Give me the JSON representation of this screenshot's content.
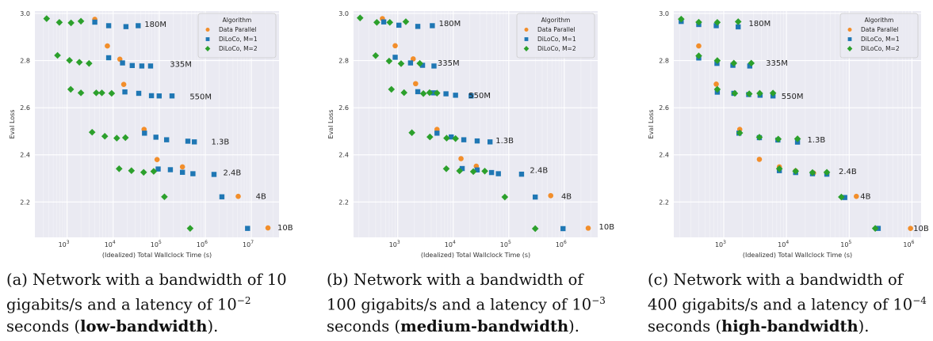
{
  "colors": {
    "background": "#eaeaf2",
    "grid": "#ffffff",
    "data_parallel": "#f28e2b",
    "diloco_m1": "#1f77b4",
    "diloco_m2": "#2ca02c"
  },
  "chart_data": [
    {
      "type": "scatter",
      "panel": "a",
      "title": "",
      "xlabel": "(Idealized) Total Wallclock Time (s)",
      "ylabel": "Eval Loss",
      "xscale": "log",
      "xlim": [
        200,
        40000000
      ],
      "ylim": [
        2.05,
        3.01
      ],
      "xticks": [
        {
          "v": 1000,
          "base": "10",
          "exp": "3"
        },
        {
          "v": 10000,
          "base": "10",
          "exp": "4"
        },
        {
          "v": 100000,
          "base": "10",
          "exp": "5"
        },
        {
          "v": 1000000,
          "base": "10",
          "exp": "6"
        },
        {
          "v": 10000000,
          "base": "10",
          "exp": "7"
        }
      ],
      "yticks": [
        {
          "v": 2.2,
          "label": "2.2"
        },
        {
          "v": 2.4,
          "label": "2.4"
        },
        {
          "v": 2.6,
          "label": "2.6"
        },
        {
          "v": 2.8,
          "label": "2.8"
        },
        {
          "v": 3.0,
          "label": "3.0"
        }
      ],
      "grid": true,
      "legend": {
        "title": "Algorithm",
        "position": "top-right",
        "entries": [
          "Data Parallel",
          "DiLoCo, M=1",
          "DiLoCo, M=2"
        ]
      },
      "annotations": [
        {
          "text": "180M",
          "x": 48000,
          "y": 2.955
        },
        {
          "text": "335M",
          "x": 170000,
          "y": 2.785
        },
        {
          "text": "550M",
          "x": 460000,
          "y": 2.648
        },
        {
          "text": "1.3B",
          "x": 1350000,
          "y": 2.456
        },
        {
          "text": "2.4B",
          "x": 2450000,
          "y": 2.326
        },
        {
          "text": "4B",
          "x": 12500000,
          "y": 2.224
        },
        {
          "text": "10B",
          "x": 37000000,
          "y": 2.092
        }
      ],
      "series": [
        {
          "name": "Data Parallel",
          "marker": "circle",
          "points": [
            [
              4000,
              2.975
            ],
            [
              7500,
              2.862
            ],
            [
              14000,
              2.806
            ],
            [
              17000,
              2.699
            ],
            [
              47000,
              2.508
            ],
            [
              90000,
              2.38
            ],
            [
              320000,
              2.349
            ],
            [
              5200000,
              2.224
            ],
            [
              23000000,
              2.09
            ]
          ]
        },
        {
          "name": "DiLoCo, M=1",
          "marker": "square",
          "points": [
            [
              4000,
              2.963
            ],
            [
              8000,
              2.948
            ],
            [
              19000,
              2.944
            ],
            [
              35000,
              2.948
            ],
            [
              8000,
              2.812
            ],
            [
              16000,
              2.79
            ],
            [
              26000,
              2.779
            ],
            [
              42000,
              2.777
            ],
            [
              65000,
              2.777
            ],
            [
              18000,
              2.667
            ],
            [
              36000,
              2.661
            ],
            [
              68000,
              2.651
            ],
            [
              100000,
              2.65
            ],
            [
              190000,
              2.65
            ],
            [
              48000,
              2.492
            ],
            [
              85000,
              2.475
            ],
            [
              145000,
              2.464
            ],
            [
              420000,
              2.458
            ],
            [
              580000,
              2.455
            ],
            [
              95000,
              2.34
            ],
            [
              175000,
              2.337
            ],
            [
              320000,
              2.326
            ],
            [
              540000,
              2.32
            ],
            [
              1550000,
              2.317
            ],
            [
              2300000,
              2.222
            ],
            [
              8300000,
              2.088
            ]
          ]
        },
        {
          "name": "DiLoCo, M=2",
          "marker": "diamond",
          "points": [
            [
              360,
              2.978
            ],
            [
              680,
              2.962
            ],
            [
              1220,
              2.96
            ],
            [
              2000,
              2.967
            ],
            [
              620,
              2.822
            ],
            [
              1130,
              2.801
            ],
            [
              1850,
              2.793
            ],
            [
              3000,
              2.788
            ],
            [
              1200,
              2.678
            ],
            [
              2000,
              2.663
            ],
            [
              4300,
              2.663
            ],
            [
              5700,
              2.663
            ],
            [
              9300,
              2.661
            ],
            [
              3500,
              2.496
            ],
            [
              6600,
              2.479
            ],
            [
              12000,
              2.471
            ],
            [
              18500,
              2.473
            ],
            [
              13500,
              2.341
            ],
            [
              25000,
              2.333
            ],
            [
              46000,
              2.326
            ],
            [
              76000,
              2.33
            ],
            [
              130000,
              2.222
            ],
            [
              470000,
              2.088
            ]
          ]
        }
      ]
    },
    {
      "type": "scatter",
      "panel": "b",
      "title": "",
      "xlabel": "(Idealized) Total Wallclock Time (s)",
      "ylabel": "Eval Loss",
      "xscale": "log",
      "xlim": [
        160,
        4000000
      ],
      "ylim": [
        2.05,
        3.01
      ],
      "xticks": [
        {
          "v": 1000,
          "base": "10",
          "exp": "3"
        },
        {
          "v": 10000,
          "base": "10",
          "exp": "4"
        },
        {
          "v": 100000,
          "base": "10",
          "exp": "5"
        },
        {
          "v": 1000000,
          "base": "10",
          "exp": "6"
        }
      ],
      "yticks": [
        {
          "v": 2.2,
          "label": "2.2"
        },
        {
          "v": 2.4,
          "label": "2.4"
        },
        {
          "v": 2.6,
          "label": "2.6"
        },
        {
          "v": 2.8,
          "label": "2.8"
        },
        {
          "v": 3.0,
          "label": "3.0"
        }
      ],
      "grid": true,
      "legend": {
        "title": "Algorithm",
        "position": "top-right",
        "entries": [
          "Data Parallel",
          "DiLoCo, M=1",
          "DiLoCo, M=2"
        ]
      },
      "annotations": [
        {
          "text": "180M",
          "x": 5500,
          "y": 2.958
        },
        {
          "text": "335M",
          "x": 5200,
          "y": 2.79
        },
        {
          "text": "550M",
          "x": 19000,
          "y": 2.652
        },
        {
          "text": "1.3B",
          "x": 58000,
          "y": 2.462
        },
        {
          "text": "2.4B",
          "x": 240000,
          "y": 2.335
        },
        {
          "text": "4B",
          "x": 880000,
          "y": 2.224
        },
        {
          "text": "10B",
          "x": 4200000,
          "y": 2.096
        }
      ],
      "series": [
        {
          "name": "Data Parallel",
          "marker": "circle",
          "points": [
            [
              530,
              2.978
            ],
            [
              900,
              2.863
            ],
            [
              1900,
              2.807
            ],
            [
              2100,
              2.702
            ],
            [
              5100,
              2.508
            ],
            [
              13800,
              2.384
            ],
            [
              26000,
              2.352
            ],
            [
              570000,
              2.227
            ],
            [
              2700000,
              2.089
            ]
          ]
        },
        {
          "name": "DiLoCo, M=1",
          "marker": "square",
          "points": [
            [
              560,
              2.964
            ],
            [
              1050,
              2.95
            ],
            [
              2300,
              2.945
            ],
            [
              4200,
              2.948
            ],
            [
              900,
              2.814
            ],
            [
              1700,
              2.79
            ],
            [
              2800,
              2.78
            ],
            [
              4500,
              2.777
            ],
            [
              2300,
              2.668
            ],
            [
              4400,
              2.663
            ],
            [
              7400,
              2.659
            ],
            [
              11000,
              2.653
            ],
            [
              21000,
              2.65
            ],
            [
              5100,
              2.492
            ],
            [
              9200,
              2.476
            ],
            [
              15500,
              2.464
            ],
            [
              27000,
              2.459
            ],
            [
              46000,
              2.455
            ],
            [
              14500,
              2.342
            ],
            [
              27000,
              2.336
            ],
            [
              49000,
              2.325
            ],
            [
              65000,
              2.32
            ],
            [
              170000,
              2.318
            ],
            [
              300000,
              2.221
            ],
            [
              950000,
              2.087
            ]
          ]
        },
        {
          "name": "DiLoCo, M=2",
          "marker": "diamond",
          "points": [
            [
              210,
              2.981
            ],
            [
              420,
              2.962
            ],
            [
              720,
              2.962
            ],
            [
              1400,
              2.965
            ],
            [
              400,
              2.821
            ],
            [
              700,
              2.798
            ],
            [
              1150,
              2.787
            ],
            [
              2500,
              2.788
            ],
            [
              770,
              2.678
            ],
            [
              1300,
              2.664
            ],
            [
              2900,
              2.66
            ],
            [
              3750,
              2.664
            ],
            [
              5100,
              2.662
            ],
            [
              1800,
              2.494
            ],
            [
              3800,
              2.476
            ],
            [
              7600,
              2.471
            ],
            [
              11000,
              2.469
            ],
            [
              7500,
              2.341
            ],
            [
              13000,
              2.332
            ],
            [
              23000,
              2.329
            ],
            [
              37000,
              2.331
            ],
            [
              85000,
              2.221
            ],
            [
              300000,
              2.087
            ]
          ]
        }
      ]
    },
    {
      "type": "scatter",
      "panel": "c",
      "title": "",
      "xlabel": "(Idealized) Total Wallclock Time (s)",
      "ylabel": "Eval Loss",
      "xscale": "log",
      "xlim": [
        160,
        1400000
      ],
      "ylim": [
        2.05,
        3.01
      ],
      "xticks": [
        {
          "v": 1000,
          "base": "10",
          "exp": "3"
        },
        {
          "v": 10000,
          "base": "10",
          "exp": "4"
        },
        {
          "v": 100000,
          "base": "10",
          "exp": "5"
        },
        {
          "v": 1000000,
          "base": "10",
          "exp": "6"
        }
      ],
      "yticks": [
        {
          "v": 2.2,
          "label": "2.2"
        },
        {
          "v": 2.4,
          "label": "2.4"
        },
        {
          "v": 2.6,
          "label": "2.6"
        },
        {
          "v": 2.8,
          "label": "2.8"
        },
        {
          "v": 3.0,
          "label": "3.0"
        }
      ],
      "grid": true,
      "legend": {
        "title": "Algorithm",
        "position": "top-right",
        "entries": [
          "Data Parallel",
          "DiLoCo, M=1",
          "DiLoCo, M=2"
        ]
      },
      "annotations": [
        {
          "text": "180M",
          "x": 2500,
          "y": 2.958
        },
        {
          "text": "335M",
          "x": 4700,
          "y": 2.79
        },
        {
          "text": "550M",
          "x": 8300,
          "y": 2.65
        },
        {
          "text": "1.3B",
          "x": 21500,
          "y": 2.464
        },
        {
          "text": "2.4B",
          "x": 68000,
          "y": 2.33
        },
        {
          "text": "4B",
          "x": 150000,
          "y": 2.224
        },
        {
          "text": "10B",
          "x": 1050000,
          "y": 2.089
        }
      ],
      "series": [
        {
          "name": "Data Parallel",
          "marker": "circle",
          "points": [
            [
              400,
              2.862
            ],
            [
              760,
              2.7
            ],
            [
              1800,
              2.508
            ],
            [
              3700,
              2.381
            ],
            [
              7700,
              2.349
            ],
            [
              14000,
              2.332
            ],
            [
              27000,
              2.323
            ],
            [
              44000,
              2.32
            ],
            [
              130000,
              2.224
            ],
            [
              950000,
              2.088
            ]
          ]
        },
        {
          "name": "DiLoCo, M=1",
          "marker": "square",
          "points": [
            [
              210,
              2.966
            ],
            [
              400,
              2.953
            ],
            [
              760,
              2.948
            ],
            [
              1700,
              2.943
            ],
            [
              400,
              2.811
            ],
            [
              780,
              2.788
            ],
            [
              1400,
              2.78
            ],
            [
              2600,
              2.777
            ],
            [
              790,
              2.666
            ],
            [
              1450,
              2.661
            ],
            [
              2500,
              2.656
            ],
            [
              3800,
              2.653
            ],
            [
              6100,
              2.65
            ],
            [
              1750,
              2.492
            ],
            [
              3700,
              2.473
            ],
            [
              7300,
              2.463
            ],
            [
              15000,
              2.454
            ],
            [
              7700,
              2.333
            ],
            [
              14000,
              2.325
            ],
            [
              26000,
              2.32
            ],
            [
              44000,
              2.318
            ],
            [
              85000,
              2.219
            ],
            [
              290000,
              2.088
            ]
          ]
        },
        {
          "name": "DiLoCo, M=2",
          "marker": "diamond",
          "points": [
            [
              210,
              2.976
            ],
            [
              400,
              2.963
            ],
            [
              790,
              2.962
            ],
            [
              1700,
              2.965
            ],
            [
              400,
              2.82
            ],
            [
              790,
              2.8
            ],
            [
              1450,
              2.789
            ],
            [
              2750,
              2.789
            ],
            [
              790,
              2.678
            ],
            [
              1500,
              2.661
            ],
            [
              2550,
              2.659
            ],
            [
              3750,
              2.661
            ],
            [
              6100,
              2.662
            ],
            [
              1800,
              2.493
            ],
            [
              3700,
              2.475
            ],
            [
              7400,
              2.467
            ],
            [
              15000,
              2.468
            ],
            [
              7700,
              2.341
            ],
            [
              14000,
              2.331
            ],
            [
              26000,
              2.325
            ],
            [
              44000,
              2.326
            ],
            [
              75000,
              2.221
            ],
            [
              260000,
              2.088
            ]
          ]
        }
      ]
    }
  ],
  "captions": [
    {
      "label": "(a) Network with a bandwidth of 10 gigabits/s and a latency of 10",
      "exp": "−2",
      "mid": " seconds (",
      "bold": "low-bandwidth",
      "end": ")."
    },
    {
      "label": "(b) Network with a bandwidth of 100 gigabits/s and a latency of 10",
      "exp": "−3",
      "mid": " seconds (",
      "bold": "medium-bandwidth",
      "end": ")."
    },
    {
      "label": "(c) Network with a bandwidth of 400 gigabits/s and a latency of 10",
      "exp": "−4",
      "mid": " seconds (",
      "bold": "high-bandwidth",
      "end": ")."
    }
  ]
}
